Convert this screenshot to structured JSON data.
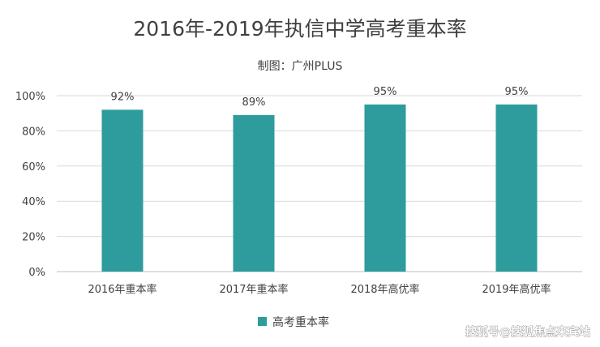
{
  "title": "2016年-2019年执信中学高考重本率",
  "subtitle": "制图：广州PLUS",
  "watermark": "搜狐号@搜狐焦点来宾站",
  "colors": {
    "bar": "#2e9c9c",
    "text": "#404040",
    "grid": "#d9d9d9"
  },
  "chart_data": {
    "type": "bar",
    "title": "2016年-2019年执信中学高考重本率",
    "categories": [
      "2016年重本率",
      "2017年重本率",
      "2018年高优率",
      "2019年高优率"
    ],
    "series": [
      {
        "name": "高考重本率",
        "values": [
          92,
          89,
          95,
          95
        ]
      }
    ],
    "data_labels": [
      "92%",
      "89%",
      "95%",
      "95%"
    ],
    "y_ticks": [
      "0%",
      "20%",
      "40%",
      "60%",
      "80%",
      "100%"
    ],
    "ylim": [
      0,
      100
    ],
    "grid": true,
    "legend_position": "bottom"
  }
}
